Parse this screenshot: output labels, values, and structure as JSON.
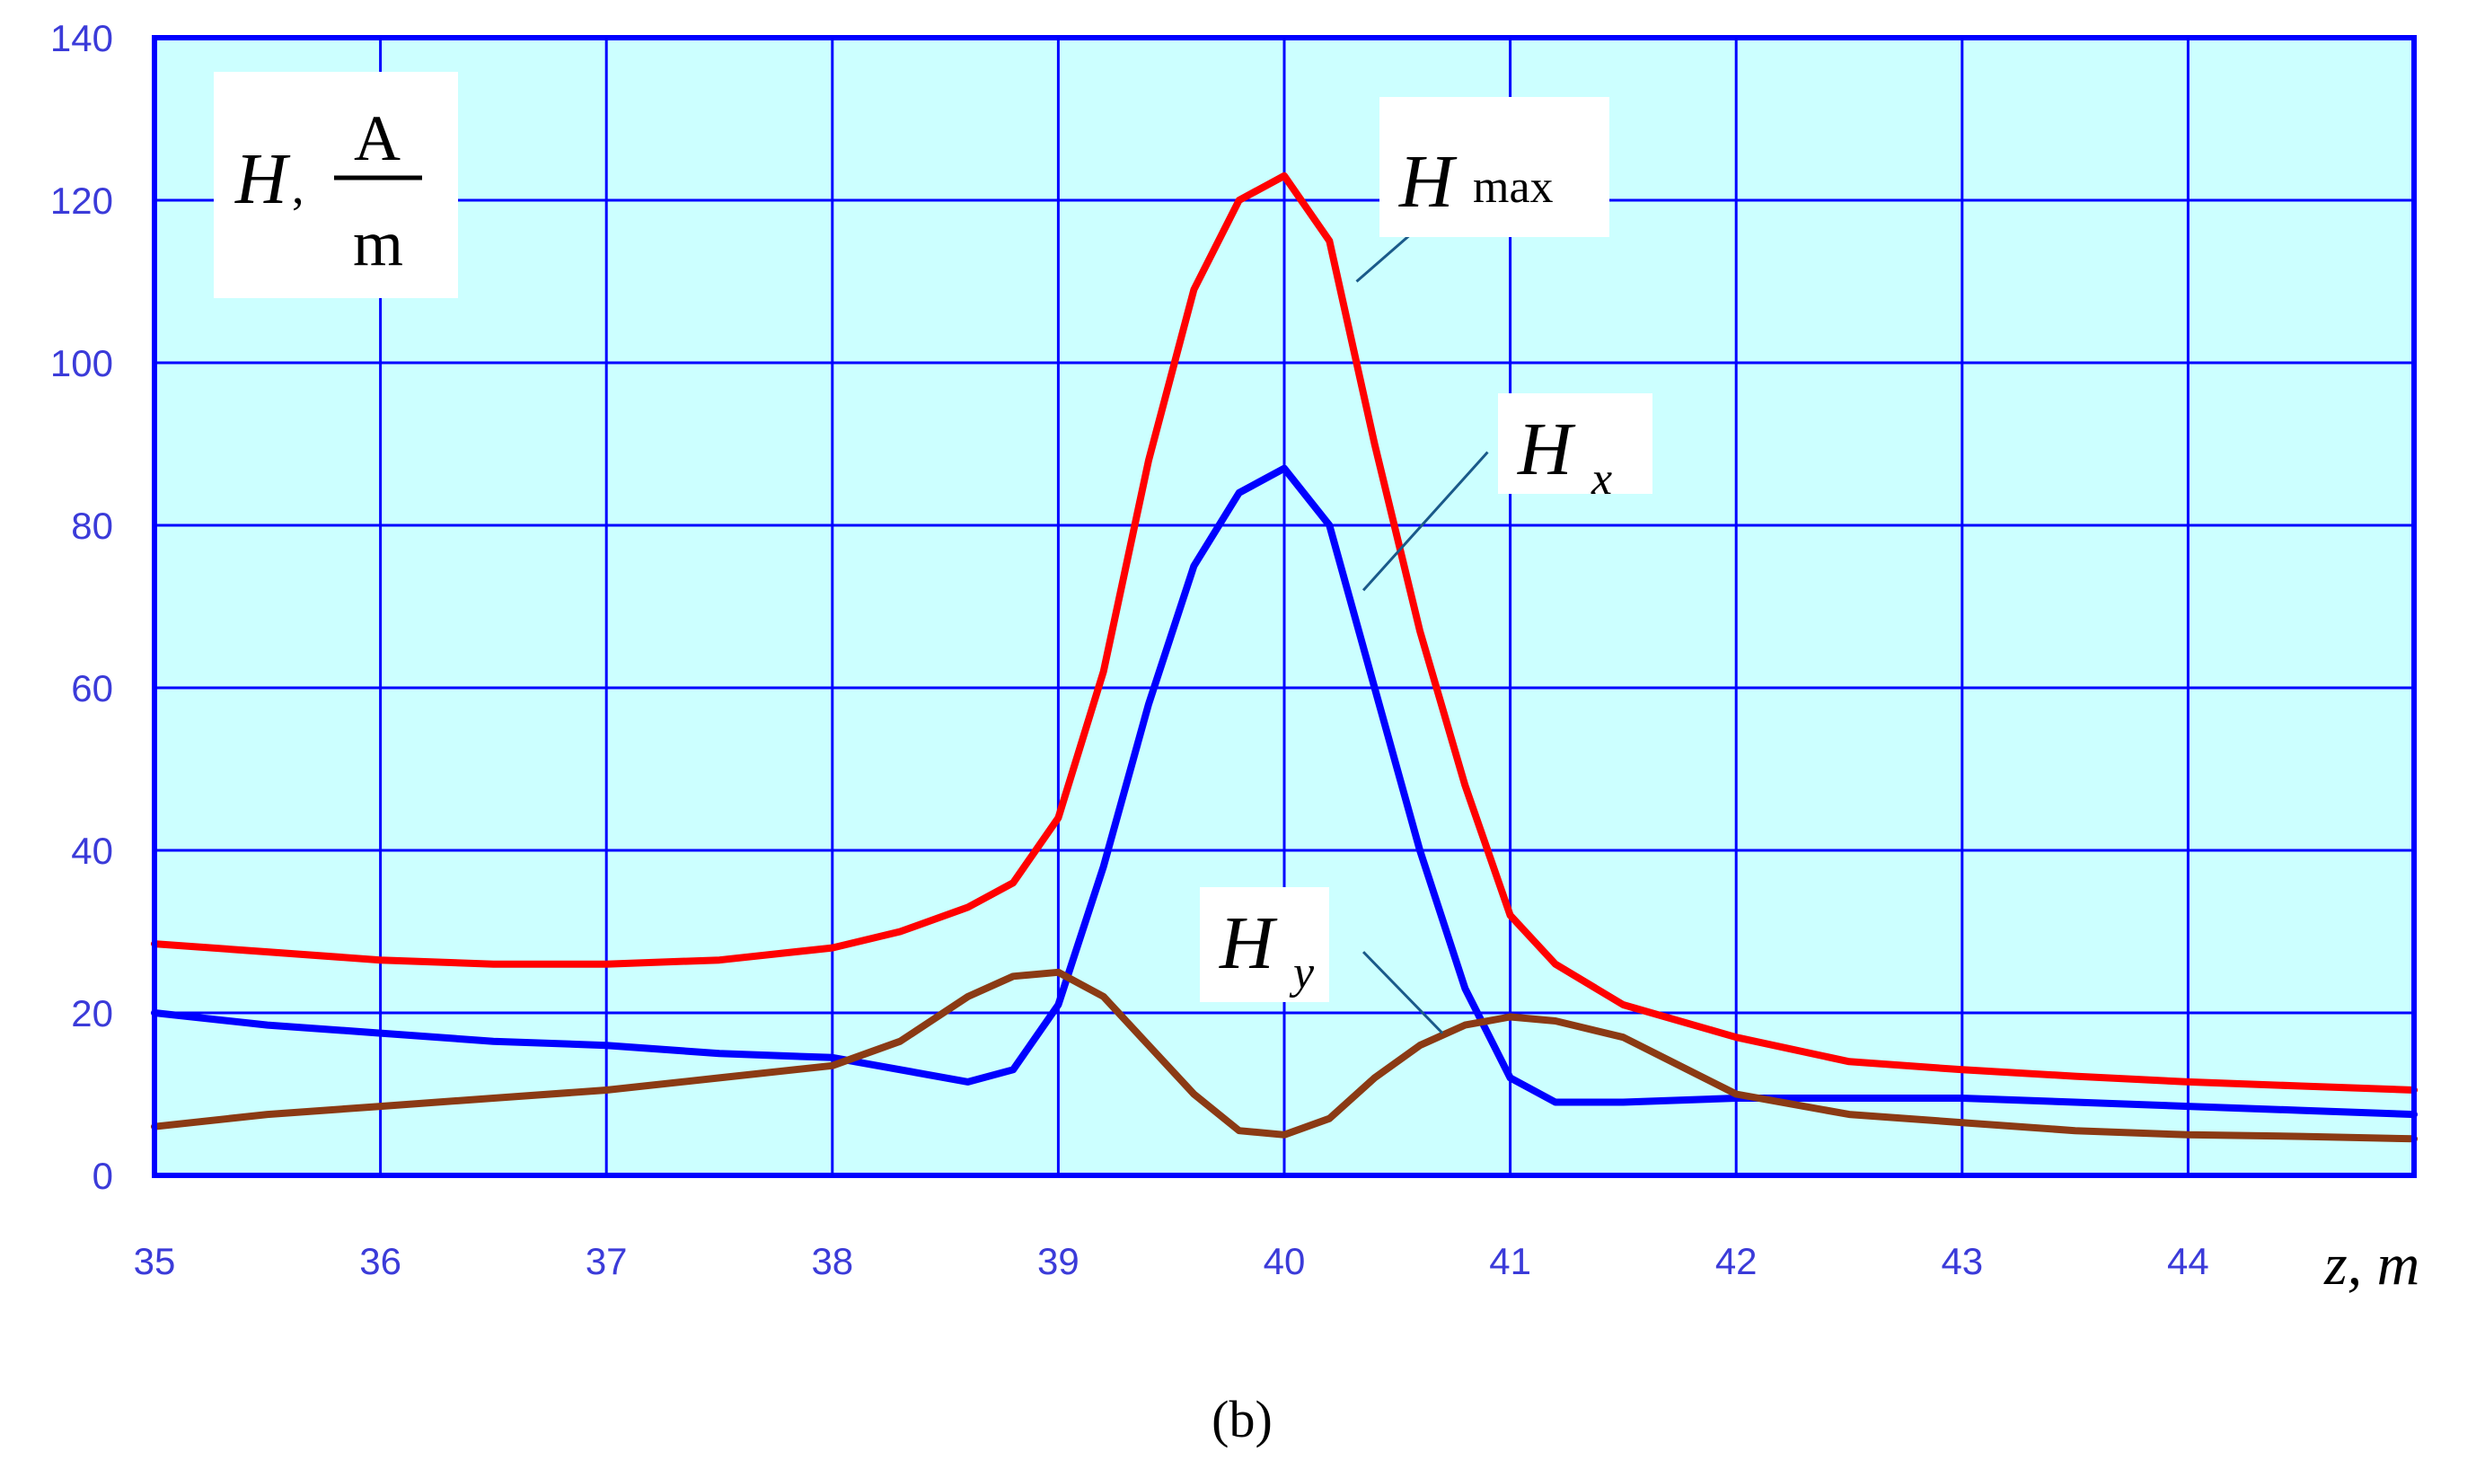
{
  "chart_data": {
    "type": "line",
    "xlabel": "z, m",
    "ylabel": "H, A/m",
    "ylabel_parts": {
      "symbol": "H",
      "sep": ",",
      "num": "A",
      "den": "m"
    },
    "xlim": [
      35,
      45
    ],
    "ylim": [
      0,
      140
    ],
    "x_ticks": [
      "35",
      "36",
      "37",
      "38",
      "39",
      "40",
      "41",
      "42",
      "43",
      "44"
    ],
    "y_ticks": [
      "0",
      "20",
      "40",
      "60",
      "80",
      "100",
      "120",
      "140"
    ],
    "grid": true,
    "caption": "(b)",
    "colors": {
      "plot_background": "#ccffff",
      "grid": "#0000ff",
      "tick_labels": "#3b3bd9"
    },
    "series": [
      {
        "name": "Hmax",
        "label_main": "H",
        "label_sub": "max",
        "color": "#ff0000",
        "x": [
          35,
          35.5,
          36,
          36.5,
          37,
          37.5,
          38,
          38.3,
          38.6,
          38.8,
          39,
          39.2,
          39.4,
          39.6,
          39.8,
          40,
          40.2,
          40.4,
          40.6,
          40.8,
          41,
          41.2,
          41.5,
          42,
          42.5,
          43,
          43.5,
          44,
          44.5,
          45
        ],
        "y": [
          28.5,
          27.5,
          26.5,
          26,
          26,
          26.5,
          28,
          30,
          33,
          36,
          44,
          62,
          88,
          109,
          120,
          123,
          115,
          90,
          67,
          48,
          32,
          26,
          21,
          17,
          14,
          13,
          12.2,
          11.5,
          11,
          10.5
        ]
      },
      {
        "name": "Hx",
        "label_main": "H",
        "label_sub": "x",
        "color": "#0000ff",
        "x": [
          35,
          35.5,
          36,
          36.5,
          37,
          37.5,
          38,
          38.3,
          38.6,
          38.8,
          39,
          39.2,
          39.4,
          39.6,
          39.8,
          40,
          40.2,
          40.4,
          40.6,
          40.8,
          41,
          41.2,
          41.5,
          42,
          42.5,
          43,
          43.5,
          44,
          44.5,
          45
        ],
        "y": [
          20,
          18.5,
          17.5,
          16.5,
          16,
          15,
          14.5,
          13,
          11.5,
          13,
          21,
          38,
          58,
          75,
          84,
          87,
          80,
          60,
          40,
          23,
          12,
          9,
          9,
          9.5,
          9.5,
          9.5,
          9,
          8.5,
          8,
          7.5
        ]
      },
      {
        "name": "Hy",
        "label_main": "H",
        "label_sub": "y",
        "color": "#8b3a14",
        "x": [
          35,
          35.5,
          36,
          36.5,
          37,
          37.5,
          38,
          38.3,
          38.6,
          38.8,
          39,
          39.2,
          39.4,
          39.6,
          39.8,
          40,
          40.2,
          40.4,
          40.6,
          40.8,
          41,
          41.2,
          41.5,
          42,
          42.5,
          43,
          43.5,
          44,
          44.5,
          45
        ],
        "y": [
          6,
          7.5,
          8.5,
          9.5,
          10.5,
          12,
          13.5,
          16.5,
          22,
          24.5,
          25,
          22,
          16,
          10,
          5.5,
          5,
          7,
          12,
          16,
          18.5,
          19.5,
          19,
          17,
          10,
          7.5,
          6.5,
          5.5,
          5,
          4.8,
          4.5
        ]
      }
    ]
  }
}
